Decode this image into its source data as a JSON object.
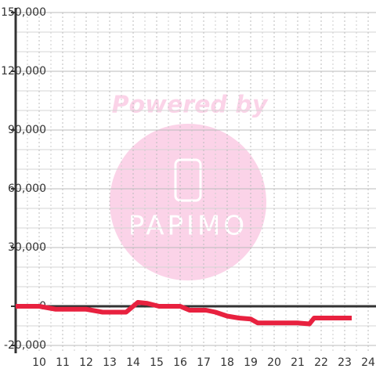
{
  "chart_data": {
    "type": "line",
    "x": [
      9.0,
      10.0,
      10.7,
      12.0,
      12.7,
      13.7,
      14.2,
      14.6,
      15.1,
      16.0,
      16.4,
      17.1,
      17.5,
      18.0,
      18.5,
      19.0,
      19.3,
      20.0,
      21.0,
      21.5,
      21.7,
      23.3
    ],
    "values": [
      0,
      0,
      -1500,
      -1500,
      -3000,
      -3000,
      2000,
      1500,
      0,
      0,
      -2000,
      -2000,
      -3000,
      -5000,
      -6000,
      -6500,
      -8500,
      -8500,
      -8500,
      -9000,
      -6000,
      -6000
    ],
    "color": "#e8213f",
    "xlim": [
      9,
      24.333
    ],
    "ylim": [
      -24000,
      150000
    ],
    "xticks": [
      10,
      11,
      12,
      13,
      14,
      15,
      16,
      17,
      18,
      19,
      20,
      21,
      22,
      23,
      24
    ],
    "yticks": [
      {
        "value": -20000,
        "label": "-20,000"
      },
      0,
      {
        "value": 30000,
        "label": "30,000"
      },
      {
        "value": 60000,
        "label": "60,000"
      },
      {
        "value": 90000,
        "label": "90,000"
      },
      {
        "value": 120000,
        "label": "120,000"
      },
      {
        "value": 150000,
        "label": "150,000"
      }
    ],
    "minor_yticks": [
      -10000,
      10000,
      20000,
      40000,
      50000,
      70000,
      80000,
      100000,
      110000,
      130000,
      140000
    ],
    "minor_xticks": [
      9.5,
      10.5,
      11.5,
      12.5,
      13.5,
      14.5,
      15.5,
      16.5,
      17.5,
      18.5,
      19.5,
      20.5,
      21.5,
      22.5,
      23.5
    ],
    "grid": true,
    "watermark": {
      "top": "Powered by",
      "logo": "PAPIMO"
    }
  }
}
